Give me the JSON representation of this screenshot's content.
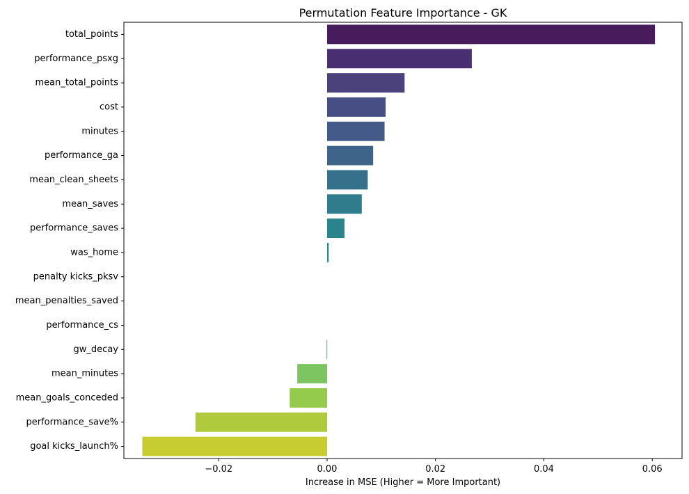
{
  "chart_data": {
    "type": "bar",
    "orientation": "horizontal",
    "title": "Permutation Feature Importance - GK",
    "xlabel": "Increase in MSE (Higher = More Important)",
    "ylabel": "",
    "xlim": [
      -0.0375,
      0.0655
    ],
    "xticks": [
      -0.02,
      0.0,
      0.02,
      0.04,
      0.06
    ],
    "xtick_labels": [
      "−0.02",
      "0.00",
      "0.02",
      "0.04",
      "0.06"
    ],
    "grid": false,
    "legend": "none",
    "categories": [
      "total_points",
      "performance_psxg",
      "mean_total_points",
      "cost",
      "minutes",
      "performance_ga",
      "mean_clean_sheets",
      "mean_saves",
      "performance_saves",
      "was_home",
      "penalty kicks_pksv",
      "mean_penalties_saved",
      "performance_cs",
      "gw_decay",
      "mean_minutes",
      "mean_goals_conceded",
      "performance_save%",
      "goal kicks_launch%"
    ],
    "values": [
      0.0605,
      0.0267,
      0.0143,
      0.0108,
      0.0106,
      0.0085,
      0.0075,
      0.0064,
      0.0032,
      0.0003,
      0.0,
      0.0,
      0.0,
      -0.0001,
      -0.0055,
      -0.0069,
      -0.0243,
      -0.0341
    ],
    "colors": [
      "#481b5c",
      "#492e72",
      "#4b417b",
      "#464e83",
      "#445a88",
      "#3e6589",
      "#36718b",
      "#307b8c",
      "#2b838c",
      "#2a8d89",
      "#269786",
      "#25a082",
      "#30aa7b",
      "#4bb76d",
      "#7cc560",
      "#95cb4c",
      "#afca3c",
      "#c7cc31"
    ]
  }
}
